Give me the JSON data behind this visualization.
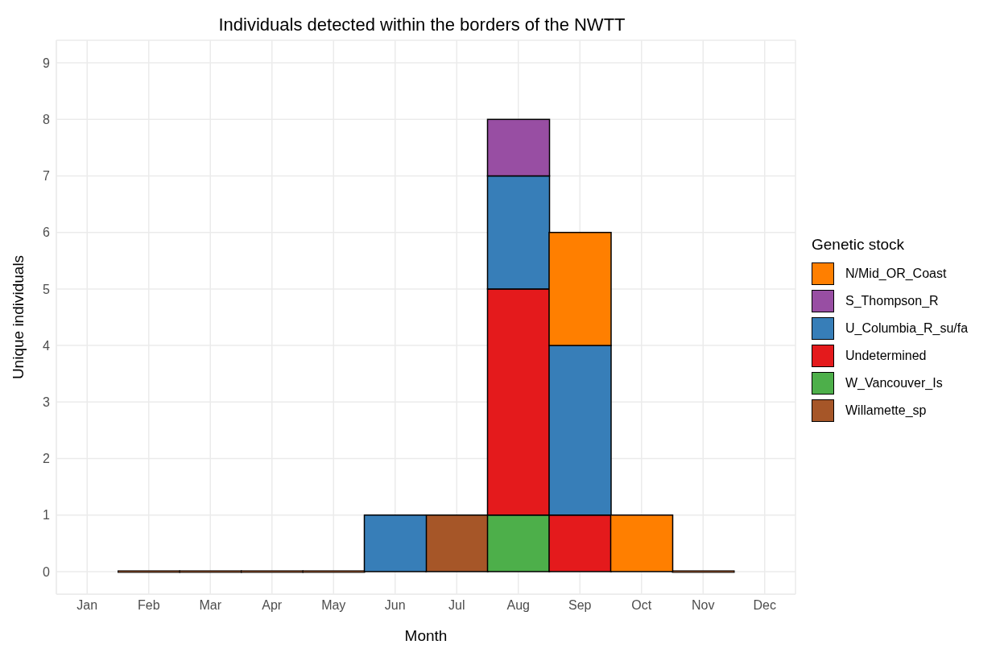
{
  "chart_data": {
    "type": "bar",
    "title": "Individuals detected within the borders of the NWTT",
    "xlabel": "Month",
    "ylabel": "Unique individuals",
    "legend_title": "Genetic stock",
    "categories": [
      "Jan",
      "Feb",
      "Mar",
      "Apr",
      "May",
      "Jun",
      "Jul",
      "Aug",
      "Sep",
      "Oct",
      "Nov",
      "Dec"
    ],
    "stacked": true,
    "ylim": [
      -0.4,
      9.4
    ],
    "yticks": [
      0,
      1,
      2,
      3,
      4,
      5,
      6,
      7,
      8,
      9
    ],
    "grid": true,
    "legend": "right",
    "series": [
      {
        "name": "Willamette_sp",
        "color": "#a65628",
        "values": [
          null,
          0,
          0,
          0,
          0,
          null,
          1,
          null,
          null,
          null,
          0,
          null
        ]
      },
      {
        "name": "W_Vancouver_Is",
        "color": "#4daf4a",
        "values": [
          null,
          null,
          null,
          null,
          null,
          null,
          null,
          1,
          null,
          null,
          null,
          null
        ]
      },
      {
        "name": "Undetermined",
        "color": "#e41a1c",
        "values": [
          null,
          null,
          null,
          null,
          null,
          null,
          null,
          4,
          1,
          null,
          null,
          null
        ]
      },
      {
        "name": "U_Columbia_R_su/fa",
        "color": "#377eb8",
        "values": [
          null,
          null,
          null,
          null,
          null,
          1,
          null,
          2,
          3,
          null,
          null,
          null
        ]
      },
      {
        "name": "S_Thompson_R",
        "color": "#984ea3",
        "values": [
          null,
          null,
          null,
          null,
          null,
          null,
          null,
          1,
          null,
          null,
          null,
          null
        ]
      },
      {
        "name": "N/Mid_OR_Coast",
        "color": "#ff7f00",
        "values": [
          null,
          null,
          null,
          null,
          null,
          null,
          null,
          null,
          2,
          1,
          null,
          null
        ]
      }
    ]
  }
}
